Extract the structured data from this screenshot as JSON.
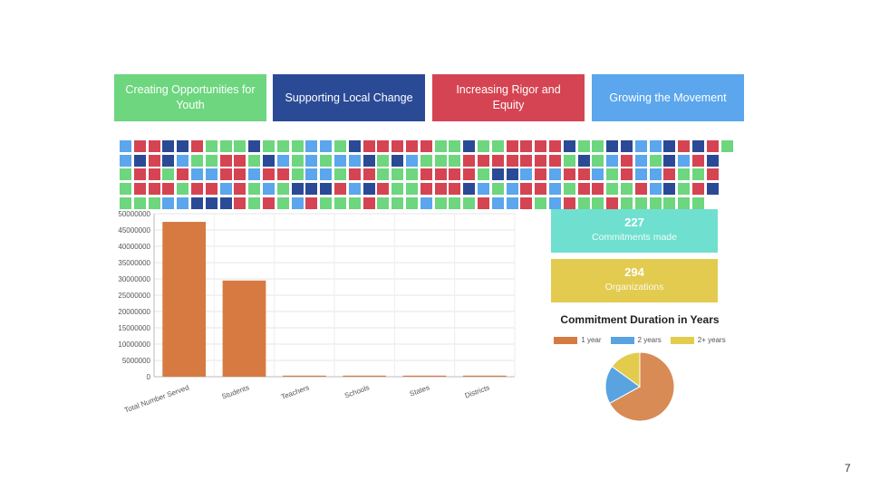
{
  "colors": {
    "green": "#6dd67e",
    "navy": "#2b4a96",
    "red": "#d54452",
    "blue": "#5ba6ec",
    "teal": "#6fe0cf",
    "yellow": "#e2cb4f",
    "orange": "#d77a42"
  },
  "tabs": [
    {
      "label": "Creating Opportunities for Youth",
      "color": "#6dd67e"
    },
    {
      "label": "Supporting Local Change",
      "color": "#2b4a96"
    },
    {
      "label": "Increasing Rigor and Equity",
      "color": "#d54452"
    },
    {
      "label": "Growing the Movement",
      "color": "#5ba6ec"
    }
  ],
  "waffle": {
    "rows": [
      "BRRNNRGGGNGGGBBGNRRRRRGGNGGRRRRNGGNNBBNRNRG",
      "BNRNBGGRRGNBGBGBBNGNBGGGRRRRRRRGNGBRBGNBRN",
      "GRRGRBBRRBRRGBBGRRGGGRRRRGNNBRBRRBGRBBRGGR",
      "GRRRGRRBRGBGNNNRBNRGGRRRNBGBRRBGRRGGRBNGRN",
      "GGGBBNNNRGRGBRGGGRGGGBGGGRBBRGBRGGRGGGGGG"
    ]
  },
  "stats": [
    {
      "value": "227",
      "label": "Commitments made",
      "color": "#6fe0cf"
    },
    {
      "value": "294",
      "label": "Organizations",
      "color": "#e2cb4f"
    }
  ],
  "chart_data": [
    {
      "type": "bar",
      "categories": [
        "Total Number Served",
        "Students",
        "Teachers",
        "Schools",
        "States",
        "Districts"
      ],
      "values": [
        47500000,
        29500000,
        250000,
        50000,
        50,
        2000
      ],
      "ylim": [
        0,
        50000000
      ],
      "yticks": [
        0,
        5000000,
        10000000,
        15000000,
        20000000,
        25000000,
        30000000,
        35000000,
        40000000,
        45000000,
        50000000
      ],
      "grid": true,
      "bar_color": "#d77a42"
    },
    {
      "type": "pie",
      "title": "Commitment Duration in Years",
      "legend_position": "top",
      "slices": [
        {
          "label": "1 year",
          "value": 67,
          "color": "#d88b55"
        },
        {
          "label": "2 years",
          "value": 18,
          "color": "#58a3e0"
        },
        {
          "label": "2+ years",
          "value": 15,
          "color": "#e3cc4d"
        }
      ]
    }
  ],
  "page_number": "7"
}
